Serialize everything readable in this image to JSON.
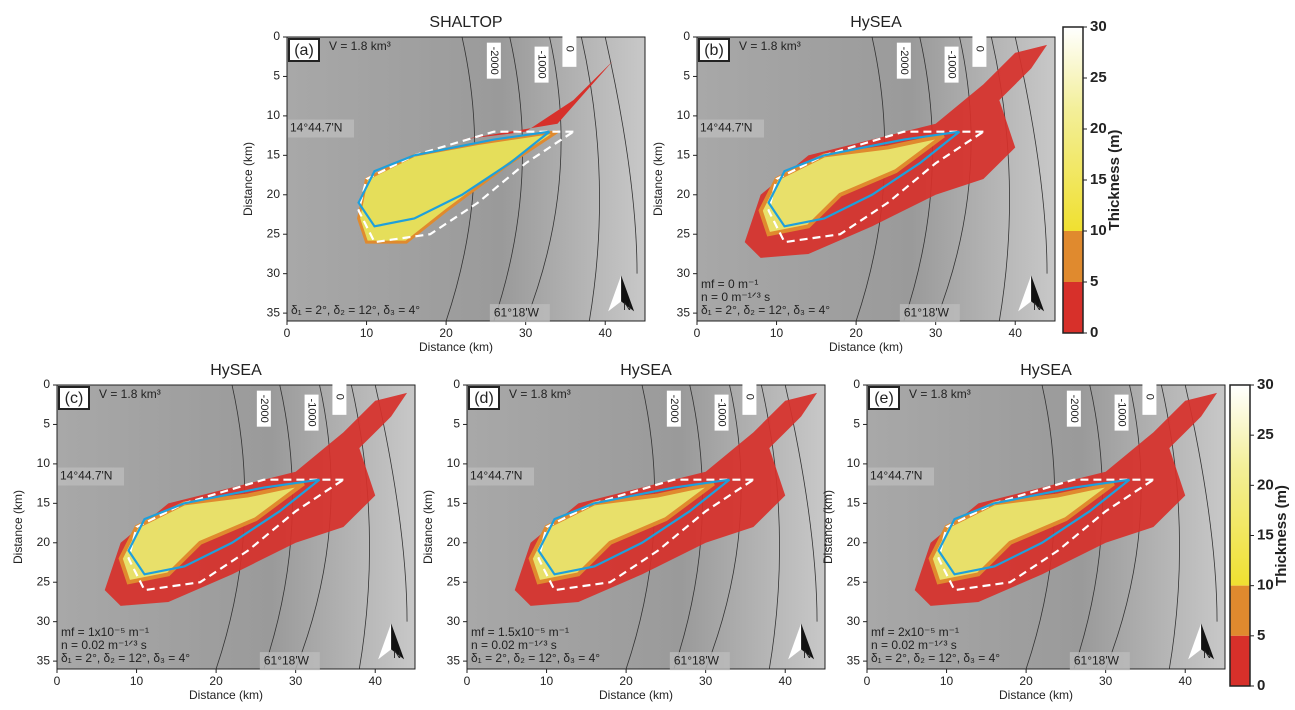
{
  "axes": {
    "xlabel": "Distance (km)",
    "ylabel": "Distance (km)",
    "xlim": [
      0,
      45
    ],
    "xticks": [
      0,
      10,
      20,
      30,
      40
    ],
    "ylim": [
      0,
      36
    ],
    "yticks": [
      0,
      5,
      10,
      15,
      20,
      25,
      30,
      35
    ]
  },
  "latitude": "14°44.7'N",
  "longitude": "61°18'W",
  "north": "N",
  "contour_labels": [
    "-2000",
    "-1000",
    "0"
  ],
  "colorbar": {
    "label": "Thickness (m)",
    "lim": [
      0,
      30
    ],
    "ticks": [
      0,
      5,
      10,
      15,
      20,
      25,
      30
    ]
  },
  "panels": [
    {
      "title": "SHALTOP",
      "label": "(a)",
      "volume": "V = 1.8 km³",
      "params": [
        "δ₁ = 2°, δ₂ = 12°, δ₃ = 4°"
      ]
    },
    {
      "title": "HySEA",
      "label": "(b)",
      "volume": "V = 1.8 km³",
      "params": [
        "mf = 0 m⁻¹",
        "n = 0 m⁻¹ᐟ³ s",
        "δ₁ = 2°, δ₂ = 12°, δ₃ = 4°"
      ]
    },
    {
      "title": "HySEA",
      "label": "(c)",
      "volume": "V = 1.8 km³",
      "params": [
        "mf = 1x10⁻⁵ m⁻¹",
        "n = 0.02 m⁻¹ᐟ³ s",
        "δ₁ = 2°, δ₂ = 12°, δ₃ = 4°"
      ]
    },
    {
      "title": "HySEA",
      "label": "(d)",
      "volume": "V = 1.8 km³",
      "params": [
        "mf = 1.5x10⁻⁵ m⁻¹",
        "n = 0.02 m⁻¹ᐟ³ s",
        "δ₁ = 2°, δ₂ = 12°, δ₃ = 4°"
      ]
    },
    {
      "title": "HySEA",
      "label": "(e)",
      "volume": "V = 1.8 km³",
      "params": [
        "mf = 2x10⁻⁵ m⁻¹",
        "n = 0.02 m⁻¹ᐟ³ s",
        "δ₁ = 2°, δ₂ = 12°, δ₃ = 4°"
      ]
    }
  ]
}
